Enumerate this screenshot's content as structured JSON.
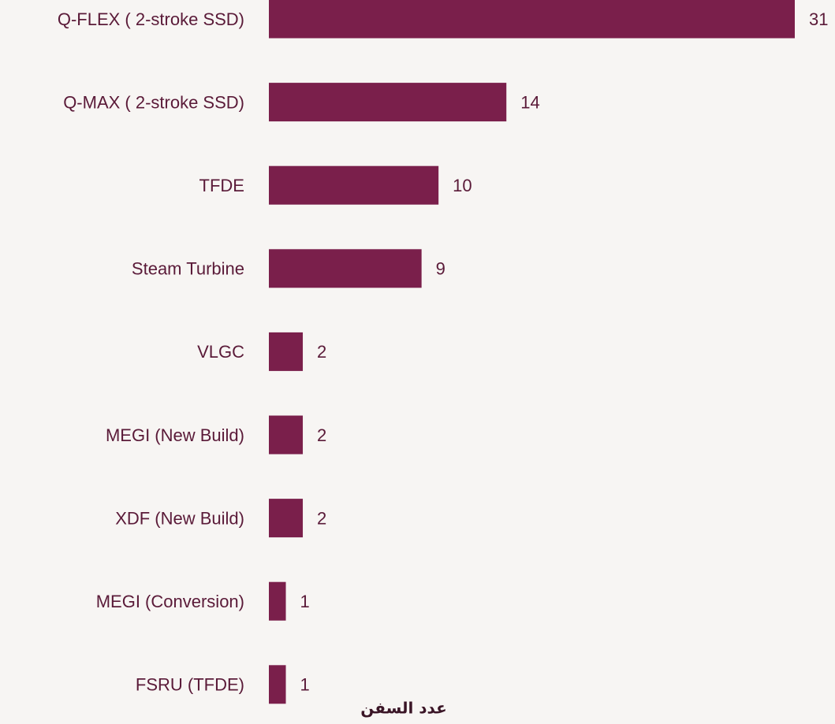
{
  "chart_data": {
    "type": "bar",
    "orientation": "horizontal",
    "x_axis_label": "عدد السفن",
    "categories": [
      "Q-FLEX  ( 2-stroke SSD)",
      "Q-MAX ( 2-stroke SSD)",
      "TFDE",
      "Steam Turbine",
      "VLGC",
      "MEGI (New Build)",
      "XDF (New Build)",
      "MEGI (Conversion)",
      "FSRU (TFDE)"
    ],
    "values": [
      31,
      14,
      10,
      9,
      2,
      2,
      2,
      1,
      1
    ],
    "color": "#7a1f4b",
    "xlim": [
      0,
      31
    ]
  }
}
